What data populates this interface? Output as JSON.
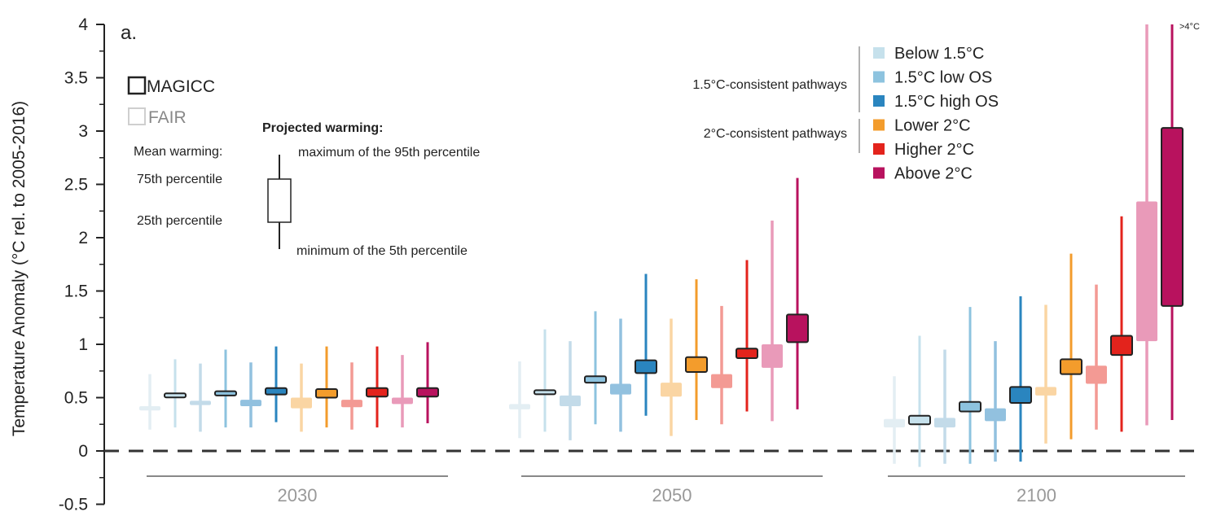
{
  "panel_label": "a.",
  "model_legend": {
    "magicc": "MAGICC",
    "fair": "FAIR"
  },
  "key": {
    "title": "Projected warming:",
    "mean": "Mean warming:",
    "p75": "75th percentile",
    "p25": "25th percentile",
    "max": "maximum of the 95th percentile",
    "min": "minimum of the 5th percentile"
  },
  "legend_groups": {
    "g15": "1.5°C-consistent pathways",
    "g2": "2°C-consistent pathways"
  },
  "out_of_range_label": ">4°C",
  "chart_data": {
    "type": "box",
    "ylabel": "Temperature Anomaly (°C rel. to 2005-2016)",
    "xlabel": "",
    "ylim": [
      -0.5,
      4
    ],
    "yticks": [
      -0.5,
      0,
      0.5,
      1,
      1.5,
      2,
      2.5,
      3,
      3.5,
      4
    ],
    "ytick_labels": [
      "-0.5",
      "0",
      "0.5",
      "1",
      "1.5",
      "2",
      "2.5",
      "3",
      "3.5",
      "4"
    ],
    "reference_line": 0,
    "grid": false,
    "groups": [
      "2030",
      "2050",
      "2100"
    ],
    "series": [
      {
        "name": "Below 1.5°C",
        "color": "#c6e1ec",
        "fair_color": "#e3eef3"
      },
      {
        "name": "1.5°C low OS",
        "color": "#8dc3df",
        "fair_color": "#c3dbe9"
      },
      {
        "name": "1.5°C high OS",
        "color": "#2a85bf",
        "fair_color": "#92c1df"
      },
      {
        "name": "Lower 2°C",
        "color": "#f39c2c",
        "fair_color": "#fad5a3"
      },
      {
        "name": "Higher 2°C",
        "color": "#e3231c",
        "fair_color": "#f39a94"
      },
      {
        "name": "Above 2°C",
        "color": "#b8125e",
        "fair_color": "#e99ab9"
      }
    ],
    "data": {
      "2030": [
        {
          "fair": [
            0.2,
            0.38,
            0.42,
            0.72
          ],
          "magicc": [
            0.22,
            0.51,
            0.54,
            0.86
          ]
        },
        {
          "fair": [
            0.18,
            0.43,
            0.47,
            0.82
          ],
          "magicc": [
            0.22,
            0.52,
            0.56,
            0.95
          ]
        },
        {
          "fair": [
            0.22,
            0.42,
            0.48,
            0.83
          ],
          "magicc": [
            0.27,
            0.53,
            0.59,
            0.98
          ]
        },
        {
          "fair": [
            0.18,
            0.4,
            0.5,
            0.82
          ],
          "magicc": [
            0.22,
            0.5,
            0.58,
            0.98
          ]
        },
        {
          "fair": [
            0.2,
            0.41,
            0.48,
            0.83
          ],
          "magicc": [
            0.22,
            0.51,
            0.59,
            0.98
          ]
        },
        {
          "fair": [
            0.22,
            0.44,
            0.5,
            0.9
          ],
          "magicc": [
            0.26,
            0.51,
            0.59,
            1.02
          ]
        }
      ],
      "2050": [
        {
          "fair": [
            0.12,
            0.39,
            0.44,
            0.84
          ],
          "magicc": [
            0.18,
            0.54,
            0.57,
            1.14
          ]
        },
        {
          "fair": [
            0.1,
            0.42,
            0.52,
            1.03
          ],
          "magicc": [
            0.25,
            0.64,
            0.7,
            1.31
          ]
        },
        {
          "fair": [
            0.18,
            0.53,
            0.63,
            1.24
          ],
          "magicc": [
            0.33,
            0.73,
            0.85,
            1.66
          ]
        },
        {
          "fair": [
            0.14,
            0.51,
            0.64,
            1.24
          ],
          "magicc": [
            0.29,
            0.74,
            0.88,
            1.61
          ]
        },
        {
          "fair": [
            0.25,
            0.59,
            0.72,
            1.36
          ],
          "magicc": [
            0.37,
            0.87,
            0.96,
            1.79
          ]
        },
        {
          "fair": [
            0.28,
            0.78,
            1.0,
            2.16
          ],
          "magicc": [
            0.39,
            1.02,
            1.28,
            2.56
          ]
        }
      ],
      "2100": [
        {
          "fair": [
            -0.12,
            0.22,
            0.3,
            0.7
          ],
          "magicc": [
            -0.15,
            0.25,
            0.33,
            1.08
          ]
        },
        {
          "fair": [
            -0.12,
            0.22,
            0.31,
            0.95
          ],
          "magicc": [
            -0.12,
            0.37,
            0.46,
            1.35
          ]
        },
        {
          "fair": [
            -0.1,
            0.28,
            0.4,
            1.03
          ],
          "magicc": [
            -0.1,
            0.45,
            0.6,
            1.45
          ]
        },
        {
          "fair": [
            0.07,
            0.52,
            0.6,
            1.37
          ],
          "magicc": [
            0.11,
            0.72,
            0.86,
            1.85
          ]
        },
        {
          "fair": [
            0.2,
            0.63,
            0.8,
            1.56
          ],
          "magicc": [
            0.18,
            0.9,
            1.08,
            2.2
          ]
        },
        {
          "fair": [
            0.24,
            1.03,
            2.34,
            4.0
          ],
          "magicc": [
            0.29,
            1.36,
            3.03,
            4.0
          ]
        }
      ]
    }
  }
}
